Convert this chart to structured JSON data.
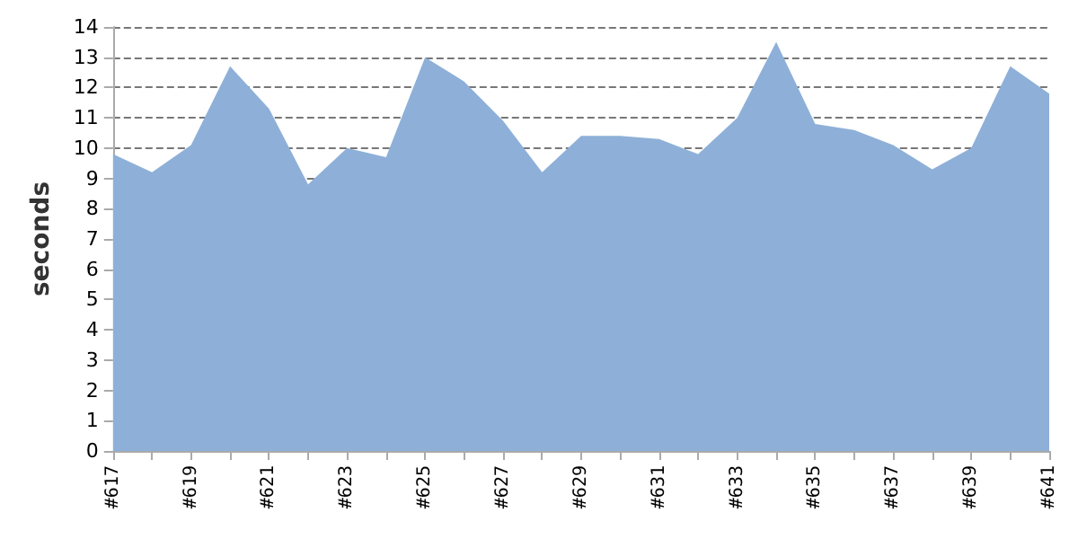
{
  "chart_data": {
    "type": "area",
    "ylabel": "seconds",
    "categories": [
      "#617",
      null,
      "#619",
      null,
      "#621",
      null,
      "#623",
      null,
      "#625",
      null,
      "#627",
      null,
      "#629",
      null,
      "#631",
      null,
      "#633",
      null,
      "#635",
      null,
      "#637",
      null,
      "#639",
      null,
      "#641"
    ],
    "series": [
      {
        "color": "#8eb0d8",
        "values": [
          9.8,
          9.2,
          10.1,
          12.7,
          11.3,
          8.8,
          10.0,
          9.7,
          13.0,
          12.2,
          10.9,
          9.2,
          10.4,
          10.4,
          10.3,
          9.8,
          11.0,
          13.5,
          10.8,
          10.6,
          10.1,
          9.3,
          10.0,
          12.7,
          11.8
        ]
      }
    ],
    "ylim": [
      0,
      14
    ],
    "yticks": [
      0,
      1,
      2,
      3,
      4,
      5,
      6,
      7,
      8,
      9,
      10,
      11,
      12,
      13,
      14
    ],
    "grid": "y",
    "line_style": "dashed"
  }
}
